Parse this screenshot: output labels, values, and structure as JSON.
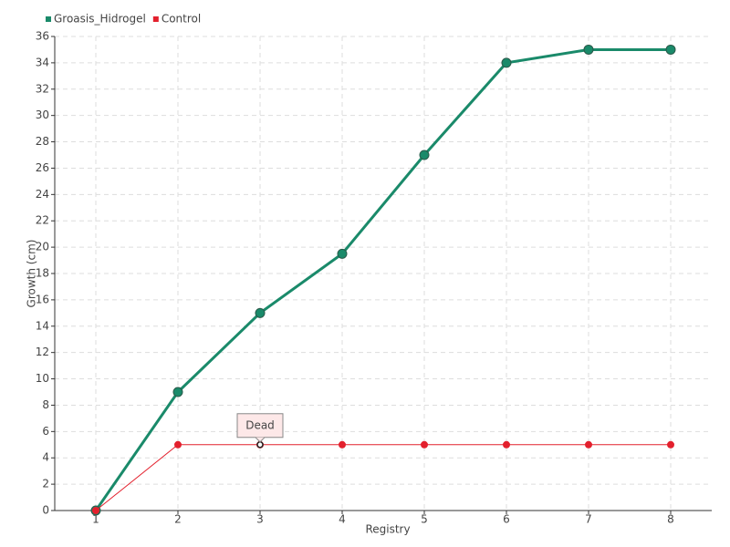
{
  "chart_data": {
    "type": "line",
    "x": [
      1,
      2,
      3,
      4,
      5,
      6,
      7,
      8
    ],
    "series": [
      {
        "name": "Groasis_Hidrogel",
        "color": "#1a8a6a",
        "values": [
          0,
          9,
          15,
          19.5,
          27,
          34,
          35,
          35
        ]
      },
      {
        "name": "Control",
        "color": "#e3202d",
        "values": [
          0,
          5,
          5,
          5,
          5,
          5,
          5,
          5
        ]
      }
    ],
    "xlabel": "Registry",
    "ylabel": "Growth (cm)",
    "xlim": [
      0.5,
      8.5
    ],
    "xticks": [
      1,
      2,
      3,
      4,
      5,
      6,
      7,
      8
    ],
    "ylim": [
      0,
      36
    ],
    "yticks": [
      0,
      2,
      4,
      6,
      8,
      10,
      12,
      14,
      16,
      18,
      20,
      22,
      24,
      26,
      28,
      30,
      32,
      34,
      36
    ],
    "grid": true,
    "annotations": [
      {
        "text": "Dead",
        "x": 3,
        "y": 5
      }
    ]
  }
}
